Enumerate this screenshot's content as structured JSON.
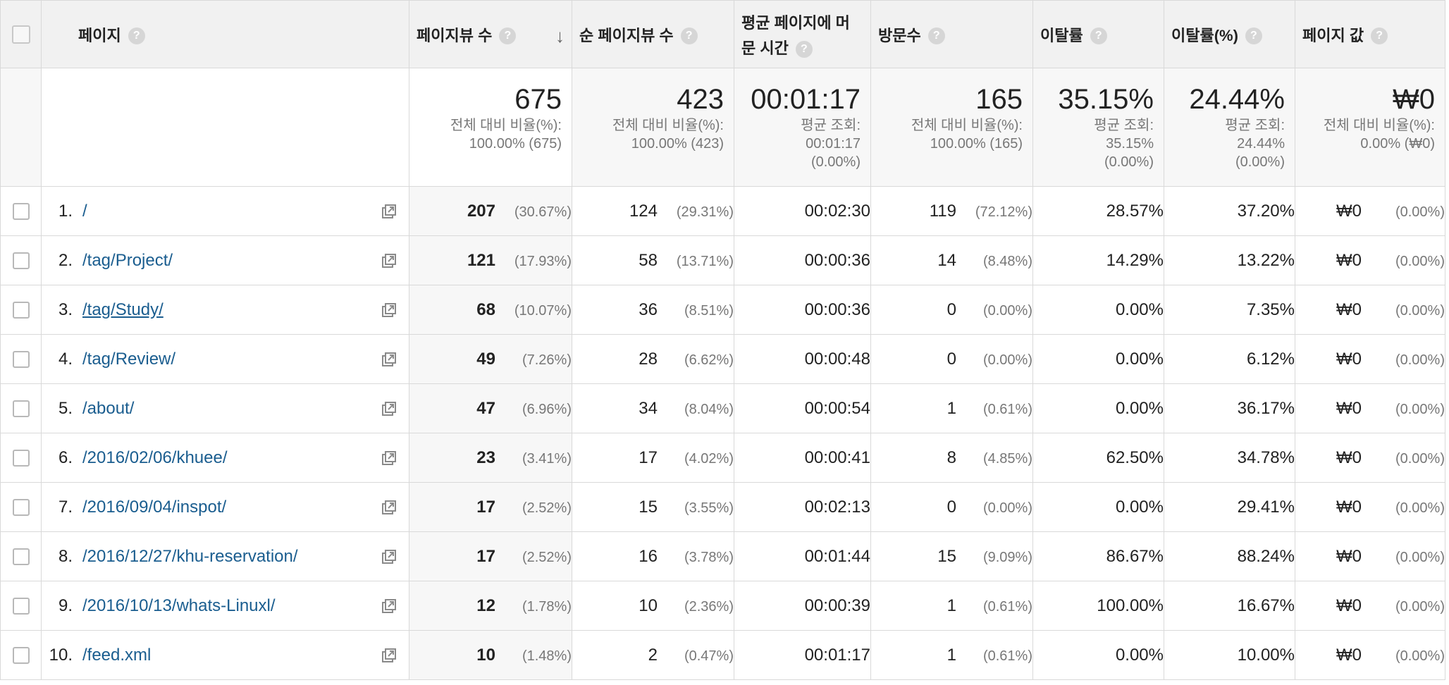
{
  "header": {
    "page": "페이지",
    "pageviews": "페이지뷰 수",
    "unique_pageviews": "순 페이지뷰 수",
    "avg_time_line1": "평균 페이지에 머",
    "avg_time_line2": "문 시간",
    "entrances": "방문수",
    "bounce_rate": "이탈률",
    "exit_rate": "이탈률(%)",
    "page_value": "페이지 값",
    "help_glyph": "?",
    "sort_arrow": "↓"
  },
  "summary": {
    "pageviews": {
      "big": "675",
      "l1": "전체 대비 비율(%):",
      "l2": "100.00% (675)"
    },
    "unique_pageviews": {
      "big": "423",
      "l1": "전체 대비 비율(%):",
      "l2": "100.00% (423)"
    },
    "avg_time": {
      "big": "00:01:17",
      "l1": "평균 조회:",
      "l2": "00:01:17",
      "l3": "(0.00%)"
    },
    "entrances": {
      "big": "165",
      "l1": "전체 대비 비율(%):",
      "l2": "100.00% (165)"
    },
    "bounce_rate": {
      "big": "35.15%",
      "l1": "평균 조회:",
      "l2": "35.15%",
      "l3": "(0.00%)"
    },
    "exit_rate": {
      "big": "24.44%",
      "l1": "평균 조회:",
      "l2": "24.44%",
      "l3": "(0.00%)"
    },
    "page_value": {
      "big": "₩0",
      "l1": "전체 대비 비율(%):",
      "l2": "0.00% (₩0)"
    }
  },
  "rows": [
    {
      "idx": "1.",
      "page": "/",
      "pv": "207",
      "pv_pct": "(30.67%)",
      "upv": "124",
      "upv_pct": "(29.31%)",
      "time": "00:02:30",
      "ent": "119",
      "ent_pct": "(72.12%)",
      "bounce": "28.57%",
      "exit": "37.20%",
      "value": "₩0",
      "value_pct": "(0.00%)"
    },
    {
      "idx": "2.",
      "page": "/tag/Project/",
      "pv": "121",
      "pv_pct": "(17.93%)",
      "upv": "58",
      "upv_pct": "(13.71%)",
      "time": "00:00:36",
      "ent": "14",
      "ent_pct": "(8.48%)",
      "bounce": "14.29%",
      "exit": "13.22%",
      "value": "₩0",
      "value_pct": "(0.00%)"
    },
    {
      "idx": "3.",
      "page": "/tag/Study/",
      "pv": "68",
      "pv_pct": "(10.07%)",
      "upv": "36",
      "upv_pct": "(8.51%)",
      "time": "00:00:36",
      "ent": "0",
      "ent_pct": "(0.00%)",
      "bounce": "0.00%",
      "exit": "7.35%",
      "value": "₩0",
      "value_pct": "(0.00%)"
    },
    {
      "idx": "4.",
      "page": "/tag/Review/",
      "pv": "49",
      "pv_pct": "(7.26%)",
      "upv": "28",
      "upv_pct": "(6.62%)",
      "time": "00:00:48",
      "ent": "0",
      "ent_pct": "(0.00%)",
      "bounce": "0.00%",
      "exit": "6.12%",
      "value": "₩0",
      "value_pct": "(0.00%)"
    },
    {
      "idx": "5.",
      "page": "/about/",
      "pv": "47",
      "pv_pct": "(6.96%)",
      "upv": "34",
      "upv_pct": "(8.04%)",
      "time": "00:00:54",
      "ent": "1",
      "ent_pct": "(0.61%)",
      "bounce": "0.00%",
      "exit": "36.17%",
      "value": "₩0",
      "value_pct": "(0.00%)"
    },
    {
      "idx": "6.",
      "page": "/2016/02/06/khuee/",
      "pv": "23",
      "pv_pct": "(3.41%)",
      "upv": "17",
      "upv_pct": "(4.02%)",
      "time": "00:00:41",
      "ent": "8",
      "ent_pct": "(4.85%)",
      "bounce": "62.50%",
      "exit": "34.78%",
      "value": "₩0",
      "value_pct": "(0.00%)"
    },
    {
      "idx": "7.",
      "page": "/2016/09/04/inspot/",
      "pv": "17",
      "pv_pct": "(2.52%)",
      "upv": "15",
      "upv_pct": "(3.55%)",
      "time": "00:02:13",
      "ent": "0",
      "ent_pct": "(0.00%)",
      "bounce": "0.00%",
      "exit": "29.41%",
      "value": "₩0",
      "value_pct": "(0.00%)"
    },
    {
      "idx": "8.",
      "page": "/2016/12/27/khu-reservation/",
      "pv": "17",
      "pv_pct": "(2.52%)",
      "upv": "16",
      "upv_pct": "(3.78%)",
      "time": "00:01:44",
      "ent": "15",
      "ent_pct": "(9.09%)",
      "bounce": "86.67%",
      "exit": "88.24%",
      "value": "₩0",
      "value_pct": "(0.00%)"
    },
    {
      "idx": "9.",
      "page": "/2016/10/13/whats-Linuxl/",
      "pv": "12",
      "pv_pct": "(1.78%)",
      "upv": "10",
      "upv_pct": "(2.36%)",
      "time": "00:00:39",
      "ent": "1",
      "ent_pct": "(0.61%)",
      "bounce": "100.00%",
      "exit": "16.67%",
      "value": "₩0",
      "value_pct": "(0.00%)"
    },
    {
      "idx": "10.",
      "page": "/feed.xml",
      "pv": "10",
      "pv_pct": "(1.48%)",
      "upv": "2",
      "upv_pct": "(0.47%)",
      "time": "00:01:17",
      "ent": "1",
      "ent_pct": "(0.61%)",
      "bounce": "0.00%",
      "exit": "10.00%",
      "value": "₩0",
      "value_pct": "(0.00%)"
    }
  ],
  "colors": {
    "link": "#1a5d8f",
    "header_bg": "#f1f1f1",
    "summary_bg": "#f7f7f7"
  },
  "icons": {
    "open_external": "open-in-new-window-icon",
    "help": "help-icon",
    "sort": "sort-descending-icon"
  }
}
